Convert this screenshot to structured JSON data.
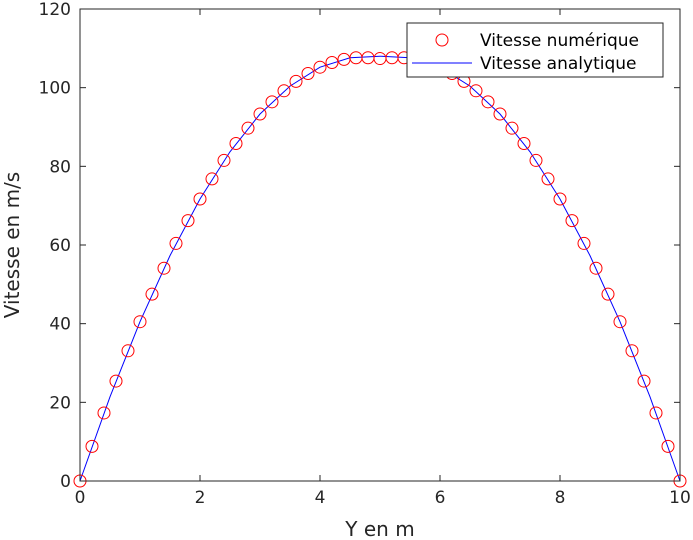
{
  "chart_data": {
    "type": "line",
    "xlabel": "Y en m",
    "ylabel": "Vitesse en m/s",
    "xlim": [
      0,
      10
    ],
    "ylim": [
      0,
      120
    ],
    "xticks": [
      0,
      2,
      4,
      6,
      8,
      10
    ],
    "yticks": [
      0,
      20,
      40,
      60,
      80,
      100,
      120
    ],
    "grid": false,
    "legend_position": "top-right",
    "colors": {
      "numeric": "#ff0000",
      "analytic": "#0000ff",
      "axes": "#262626"
    },
    "series": [
      {
        "name": "Vitesse numérique",
        "style": "markers",
        "marker": "circle",
        "x": [
          0,
          0.2,
          0.4,
          0.6,
          0.8,
          1.0,
          1.2,
          1.4,
          1.6,
          1.8,
          2.0,
          2.2,
          2.4,
          2.6,
          2.8,
          3.0,
          3.2,
          3.4,
          3.6,
          3.8,
          4.0,
          4.2,
          4.4,
          4.6,
          4.8,
          5.0,
          5.2,
          5.4,
          5.6,
          5.8,
          6.0,
          6.2,
          6.4,
          6.6,
          6.8,
          7.0,
          7.2,
          7.4,
          7.6,
          7.8,
          8.0,
          8.2,
          8.4,
          8.6,
          8.8,
          9.0,
          9.2,
          9.4,
          9.6,
          9.8,
          10.0
        ],
        "y": [
          0,
          8.8,
          17.3,
          25.4,
          33.1,
          40.5,
          47.5,
          54.1,
          60.4,
          66.2,
          71.7,
          76.8,
          81.5,
          85.8,
          89.7,
          93.3,
          96.4,
          99.2,
          101.6,
          103.6,
          105.2,
          106.4,
          107.2,
          107.6,
          107.6,
          107.4,
          107.6,
          107.6,
          107.2,
          106.4,
          105.2,
          103.6,
          101.6,
          99.2,
          96.4,
          93.3,
          89.7,
          85.8,
          81.5,
          76.8,
          71.7,
          66.2,
          60.4,
          54.1,
          47.5,
          40.5,
          33.1,
          25.4,
          17.3,
          8.8,
          0
        ]
      },
      {
        "name": "Vitesse analytique",
        "style": "line",
        "x": [
          0,
          0.5,
          1.0,
          1.5,
          2.0,
          2.5,
          3.0,
          3.5,
          4.0,
          4.5,
          5.0,
          5.5,
          6.0,
          6.5,
          7.0,
          7.5,
          8.0,
          8.5,
          9.0,
          9.5,
          10.0
        ],
        "y": [
          0,
          21.4,
          40.5,
          57.3,
          71.7,
          83.7,
          93.3,
          100.4,
          105.2,
          107.6,
          108.0,
          107.6,
          105.2,
          100.4,
          93.3,
          83.7,
          71.7,
          57.3,
          40.5,
          21.4,
          0
        ]
      }
    ]
  }
}
